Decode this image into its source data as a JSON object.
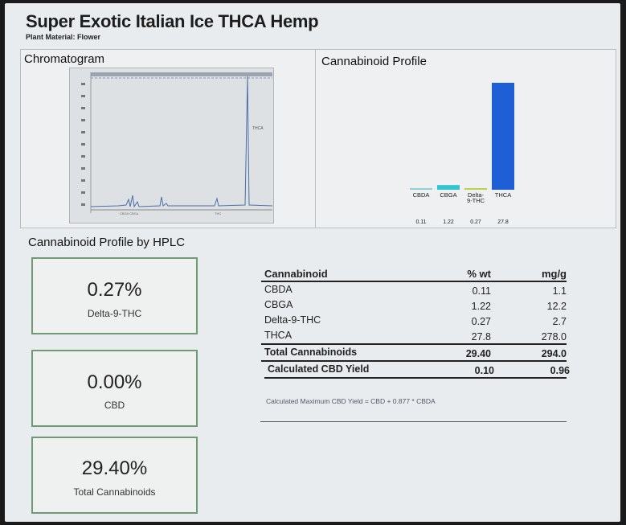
{
  "header": {
    "title": "Super Exotic Italian Ice THCA Hemp",
    "subtitle": "Plant Material: Flower"
  },
  "chromatogram": {
    "title": "Chromatogram",
    "peak_label": "THCA",
    "small_labels": [
      "CBGA CBGa",
      "THC"
    ]
  },
  "profile_chart": {
    "title": "Cannabinoid Profile"
  },
  "chart_data": {
    "type": "bar",
    "title": "Cannabinoid Profile",
    "categories": [
      "CBDA",
      "CBGA",
      "Delta-9-THC",
      "THCA"
    ],
    "category_labels": [
      [
        "CBDA"
      ],
      [
        "CBGA"
      ],
      [
        "Delta-",
        "9-THC"
      ],
      [
        "THCA"
      ]
    ],
    "value_labels": [
      "0.11",
      "1.22",
      "0.27",
      "27.8"
    ],
    "values": [
      0.11,
      1.22,
      0.27,
      27.8
    ],
    "ylim": [
      0,
      28
    ],
    "xlabel": "",
    "ylabel": "",
    "colors": [
      "#8fd0d6",
      "#35c4d2",
      "#b6d34a",
      "#1e5fd6"
    ],
    "grid": false,
    "legend": "none"
  },
  "hplc": {
    "section_title": "Cannabinoid Profile by HPLC",
    "cards": [
      {
        "value": "0.27%",
        "label": "Delta-9-THC"
      },
      {
        "value": "0.00%",
        "label": "CBD"
      },
      {
        "value": "29.40%",
        "label": "Total Cannabinoids"
      }
    ]
  },
  "table": {
    "headers": [
      "Cannabinoid",
      "% wt",
      "mg/g"
    ],
    "rows": [
      {
        "name": "CBDA",
        "wt": "0.11",
        "mg": "1.1"
      },
      {
        "name": "CBGA",
        "wt": "1.22",
        "mg": "12.2"
      },
      {
        "name": "Delta-9-THC",
        "wt": "0.27",
        "mg": "2.7"
      },
      {
        "name": "THCA",
        "wt": "27.8",
        "mg": "278.0"
      }
    ],
    "total": {
      "name": "Total Cannabinoids",
      "wt": "29.40",
      "mg": "294.0"
    },
    "cbd_yield": {
      "name": "Calculated CBD Yield",
      "wt": "0.10",
      "mg": "0.96"
    },
    "formula": "Calculated Maximum CBD Yield = CBD + 0.877 * CBDA"
  },
  "colors": {
    "card_border": "#6f9a72",
    "thca_bar": "#1e5fd6",
    "panel_bg": "#eef0f2"
  }
}
